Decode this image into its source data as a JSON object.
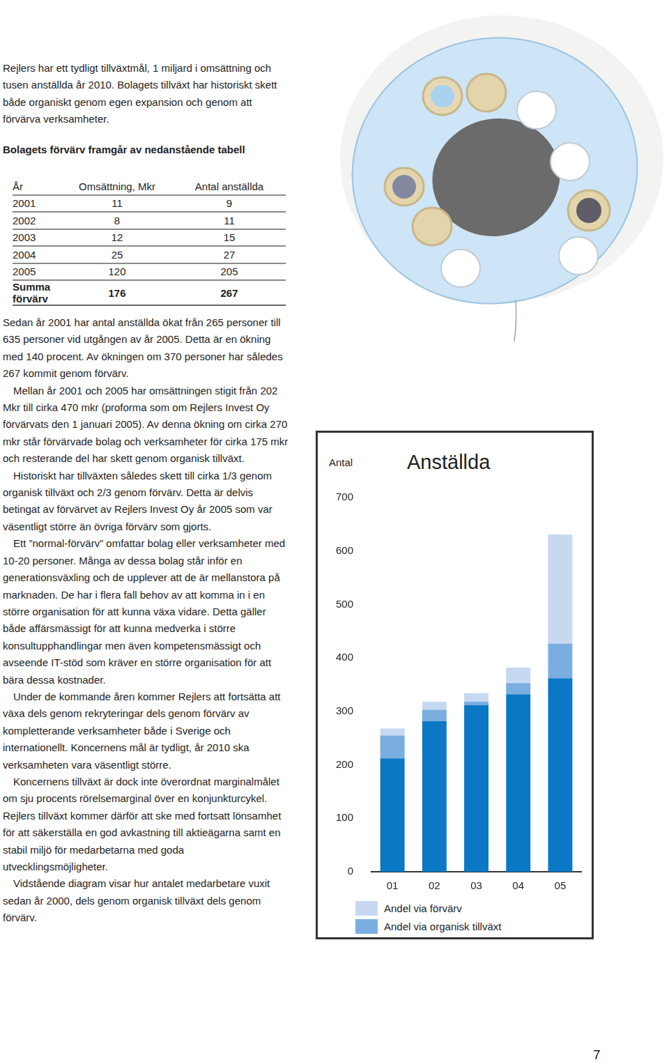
{
  "intro": "Rejlers har ett tydligt tillväxtmål, 1 miljard i omsättning och tusen anställda år 2010. Bolagets tillväxt har historiskt skett både organiskt genom egen expansion och genom att förvärva verksamheter.",
  "table": {
    "title": "Bolagets förvärv framgår av nedanstående tabell",
    "header": [
      "År",
      "Omsättning, Mkr",
      "Antal anställda"
    ],
    "rows": [
      [
        2001,
        11,
        9
      ],
      [
        2002,
        8,
        11
      ],
      [
        2003,
        12,
        15
      ],
      [
        2004,
        25,
        27
      ],
      [
        2005,
        120,
        205
      ]
    ],
    "total": [
      "Summa förvärv",
      176,
      267
    ]
  },
  "paragraphs": [
    "Sedan år 2001 har antal anställda ökat från 265 personer till 635 personer vid utgången av år 2005. Detta är en ökning med 140 procent. Av ökningen om 370 personer har således 267 kommit genom förvärv.",
    "Mellan år 2001 och 2005 har omsättningen stigit från 202 Mkr till cirka 470 mkr (proforma som om Rejlers Invest Oy förvärvats den 1 januari 2005). Av denna ökning om cirka 270 mkr står förvärvade bolag och verksamheter för cirka 175 mkr och resterande del har skett genom organisk tillväxt.",
    "Historiskt har tillväxten således skett till cirka 1/3 genom organisk tillväxt och 2/3 genom förvärv. Detta är delvis betingat av förvärvet av Rejlers Invest Oy år 2005 som var väsentligt större än övriga förvärv som gjorts.",
    "Ett ”normal-förvärv” omfattar bolag eller verksamheter med 10-20 personer. Många av dessa bolag står inför en generationsväxling och de upplever att de är mellanstora på marknaden. De har i flera fall behov av att komma in i en större organisation för att kunna växa vidare. Detta gäller både affärsmässigt för att kunna medverka i större konsultupphandlingar men även kompetensmässigt och avseende IT-stöd som kräver en större organisation för att bära dessa kostnader.",
    "Under de kommande åren kommer Rejlers att fortsätta att växa dels genom rekryteringar dels genom förvärv av kompletterande verksamheter både i Sverige och internationellt. Koncernens mål är tydligt, år 2010 ska verksamheten vara väsentligt större.",
    "Koncernens tillväxt är dock inte överordnat marginalmålet om sju procents rörelsemarginal över en konjunkturcykel. Rejlers tillväxt kommer därför att ske med fortsatt lönsamhet för att säkerställa en god avkastning till aktieägarna samt en stabil miljö för medarbetarna med goda utvecklingsmöjligheter.",
    "Vidstående diagram visar hur antalet medarbetare vuxit sedan år 2000, dels genom organisk tillväxt dels genom förvärv."
  ],
  "chart_data": {
    "type": "bar",
    "title": "Anställda",
    "y_label": "Antal",
    "categories": [
      "01",
      "02",
      "03",
      "04",
      "05"
    ],
    "series": [
      {
        "name": null,
        "color": "#0b78c6",
        "values": [
          212,
          282,
          312,
          332,
          362
        ]
      },
      {
        "name": "Andel via organisk tillväxt",
        "color": "#7aaee0",
        "values": [
          43,
          21,
          6,
          21,
          65
        ]
      },
      {
        "name": "Andel via förvärv",
        "color": "#c7d9f1",
        "values": [
          13,
          15,
          16,
          29,
          204
        ]
      }
    ],
    "stacked": true,
    "ylim": [
      0,
      700
    ],
    "yticks": [
      0,
      100,
      200,
      300,
      400,
      500,
      600,
      700
    ],
    "grid": false,
    "legend": "bottom"
  },
  "page_number": 7
}
